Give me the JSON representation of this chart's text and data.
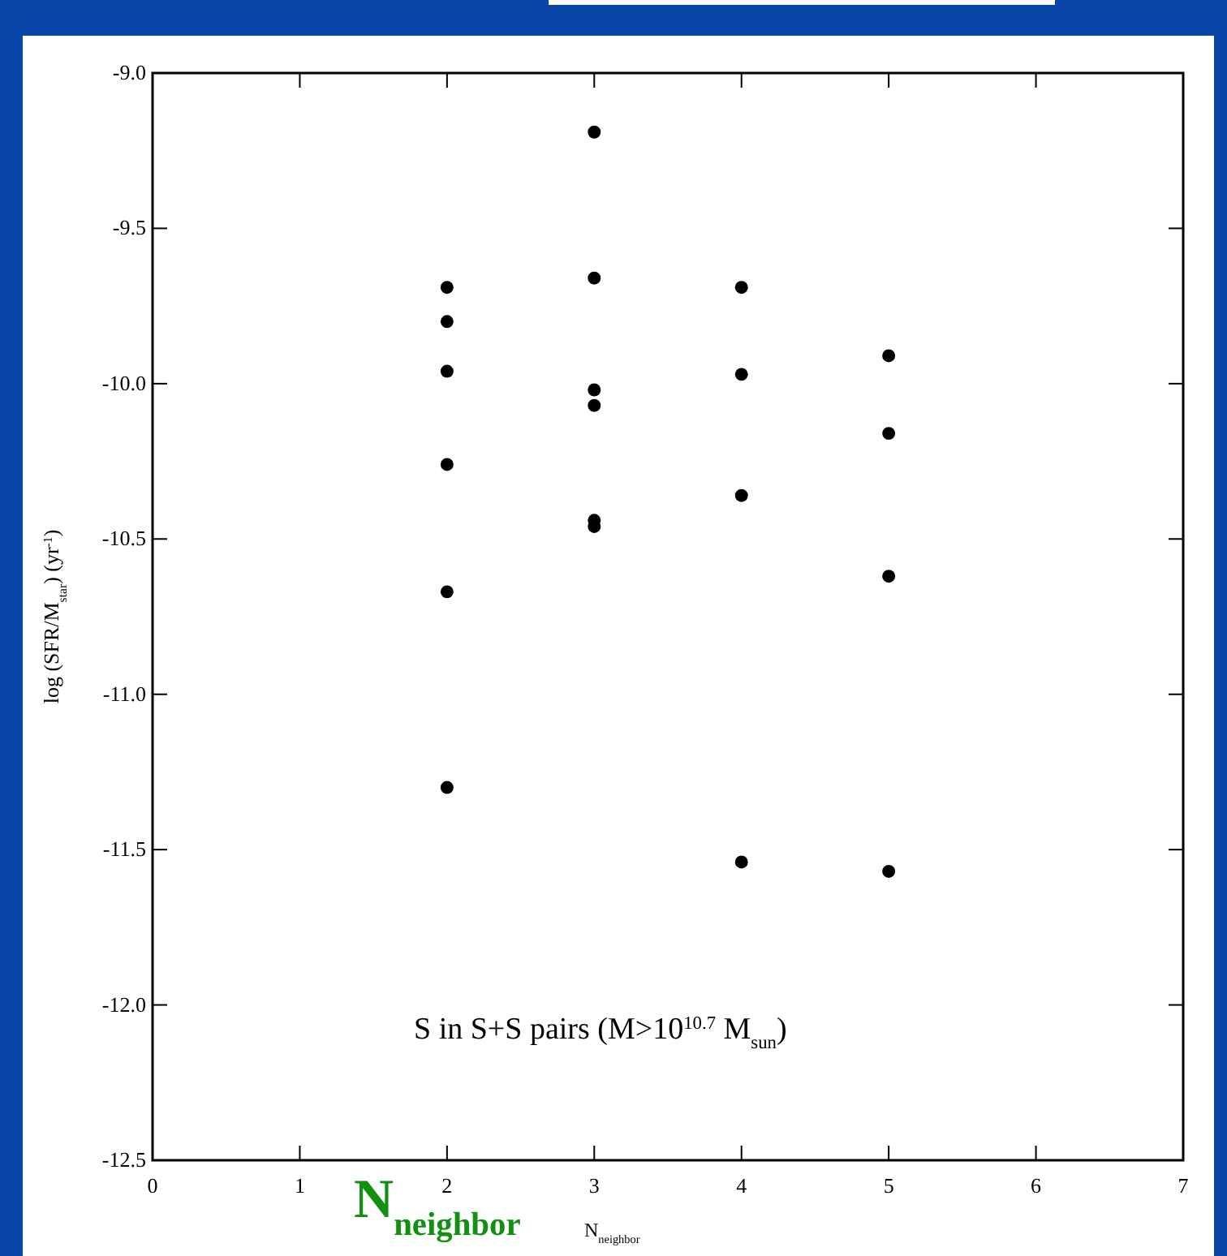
{
  "chart_data": {
    "type": "scatter",
    "xlabel": "N$_{neighbor}$",
    "ylabel": "log (SFR/M$_{star}$) (yr$^{-1}$)",
    "annotations": [
      "S in S+S pairs (M>10$^{10.7}$ M$_{sun}$)",
      "N$_{neighbor}$"
    ],
    "x": [
      2,
      2,
      2,
      2,
      2,
      2,
      3,
      3,
      3,
      3,
      3,
      3,
      4,
      4,
      4,
      4,
      5,
      5,
      5,
      5
    ],
    "series": [
      {
        "color": "#000000",
        "values": [
          -9.69,
          -9.8,
          -9.96,
          -10.26,
          -10.67,
          -11.3,
          -9.19,
          -9.66,
          -10.02,
          -10.07,
          -10.44,
          -10.46,
          -9.69,
          -9.97,
          -10.36,
          -11.54,
          -9.91,
          -10.16,
          -10.62,
          -11.57
        ]
      }
    ],
    "marker": "circle",
    "xlim": [
      0,
      7
    ],
    "ylim": [
      -12.5,
      -9
    ],
    "xticks": [
      0,
      1,
      2,
      3,
      4,
      5,
      6,
      7
    ],
    "yticks": [
      {
        "value": -9,
        "label": "-9.0"
      },
      {
        "value": -9.5,
        "label": "-9.5"
      },
      {
        "value": -10,
        "label": "-10.0"
      },
      {
        "value": -10.5,
        "label": "-10.5"
      },
      {
        "value": -11,
        "label": "-11.0"
      },
      {
        "value": -11.5,
        "label": "-11.5"
      },
      {
        "value": -12,
        "label": "-12.0"
      },
      {
        "value": -12.5,
        "label": "-12.5"
      }
    ],
    "grid": false
  }
}
